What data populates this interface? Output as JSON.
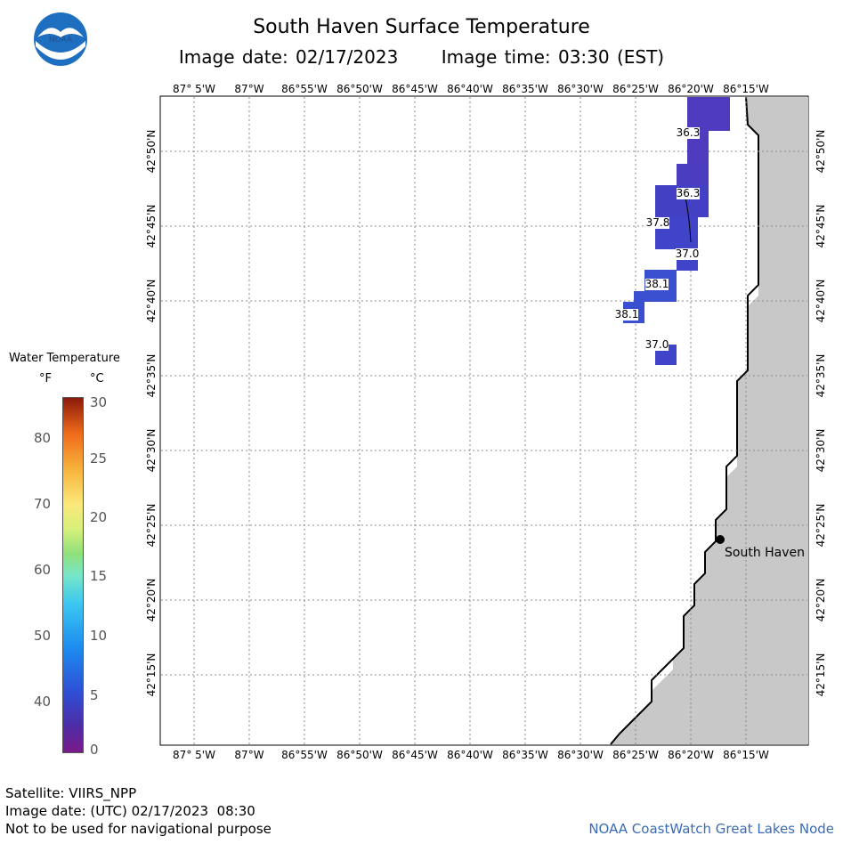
{
  "header": {
    "logo_text": "NOAA",
    "title": "South Haven Surface Temperature",
    "image_date": "Image date: 02/17/2023",
    "image_time": "Image time: 03:30 (EST)"
  },
  "map": {
    "lon_labels": [
      "87° 5'W",
      "87°W",
      "86°55'W",
      "86°50'W",
      "86°45'W",
      "86°40'W",
      "86°35'W",
      "86°30'W",
      "86°25'W",
      "86°20'W",
      "86°15'W"
    ],
    "lat_labels": [
      "42°50'N",
      "42°45'N",
      "42°40'N",
      "42°35'N",
      "42°30'N",
      "42°25'N",
      "42°20'N",
      "42°15'N"
    ],
    "city_label": "South Haven",
    "temp_labels": [
      "36.3",
      "36.3",
      "37.8",
      "37.0",
      "38.1",
      "38.1",
      "37.0"
    ],
    "colors": {
      "land": "#c8c8c8",
      "water_cold": "#4e3bbd",
      "water_mid": "#4440c4",
      "water_warm": "#3a4fd0",
      "grid": "#888888"
    }
  },
  "legend": {
    "title": "Water Temperature",
    "unit_f": "°F",
    "unit_c": "°C",
    "f_ticks": [
      "80",
      "70",
      "60",
      "50",
      "40"
    ],
    "c_ticks": [
      "30",
      "25",
      "20",
      "15",
      "10",
      "5",
      "0"
    ]
  },
  "footer": {
    "satellite": "Satellite: VIIRS_NPP",
    "utc_date": "Image date: (UTC) 02/17/2023  08:30",
    "disclaimer": "Not to be used for navigational purpose",
    "credit": "NOAA CoastWatch Great Lakes Node"
  }
}
